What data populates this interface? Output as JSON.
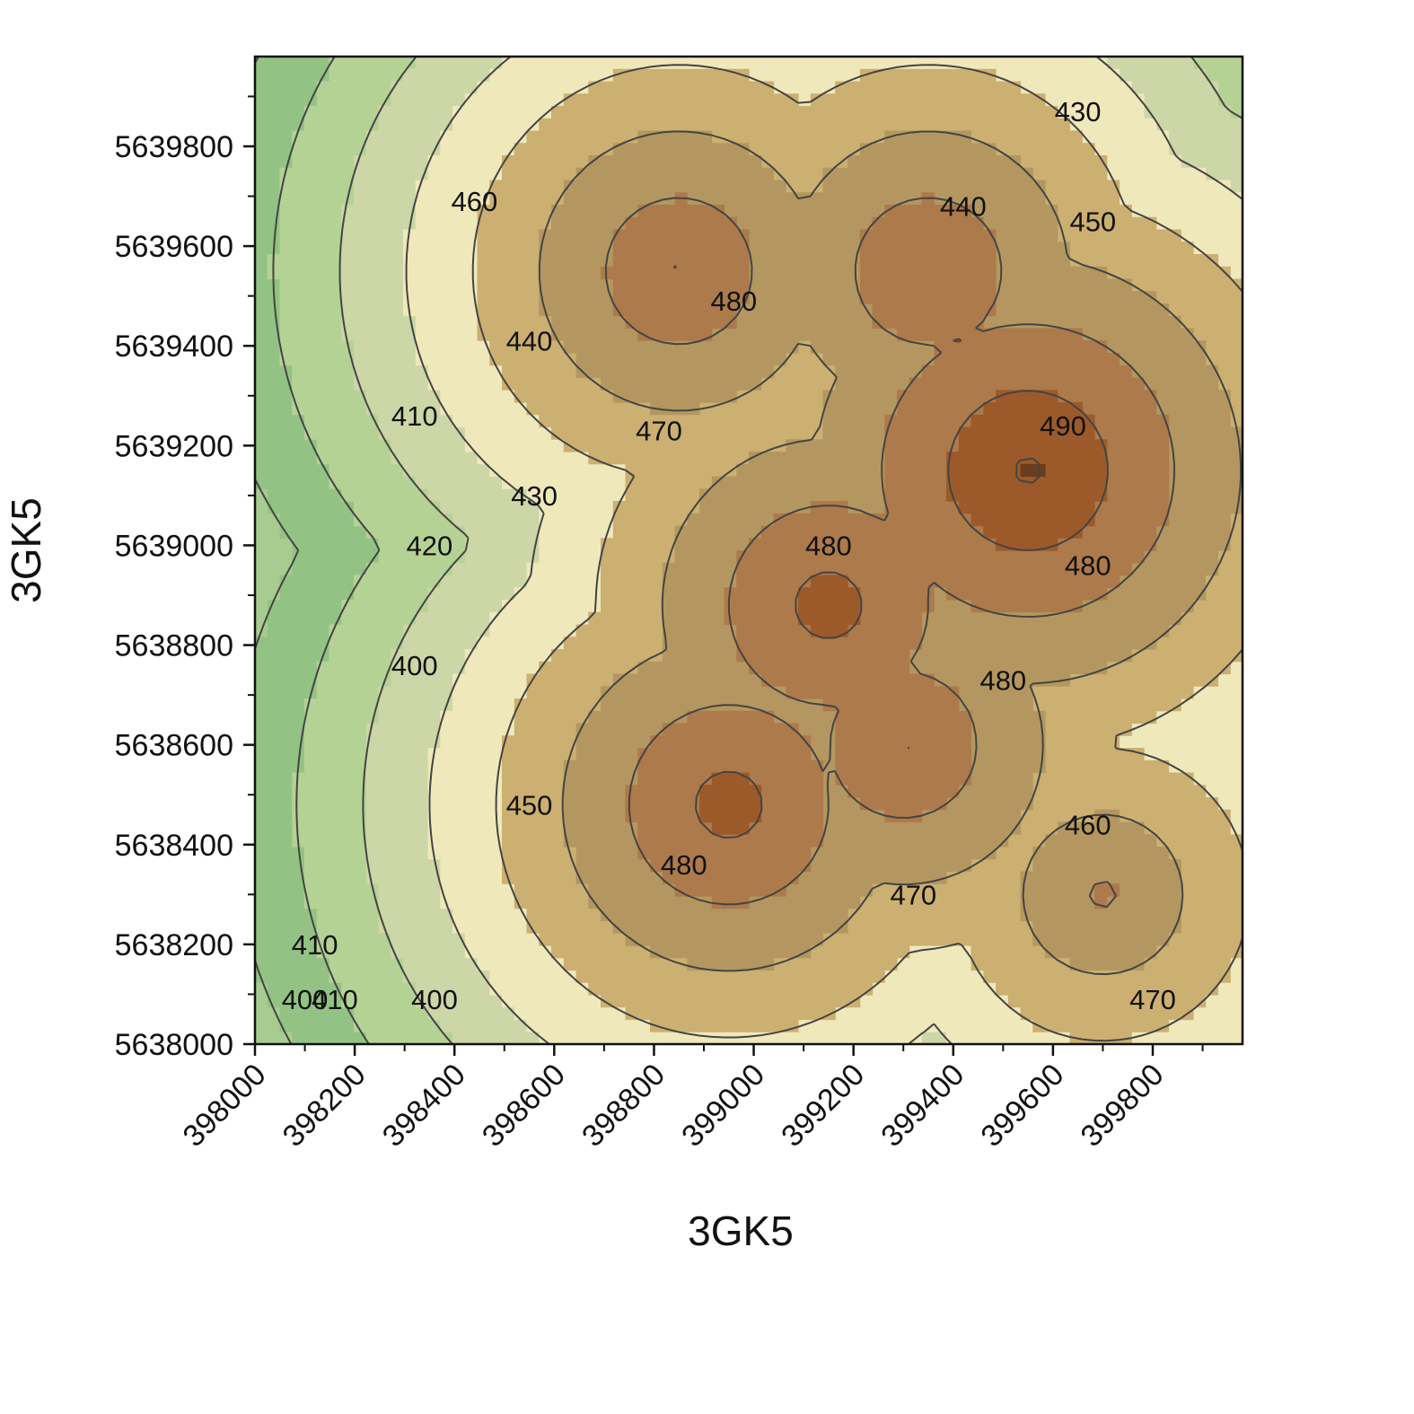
{
  "chart_data": {
    "type": "contour",
    "xlabel": "3GK5",
    "ylabel": "3GK5",
    "xlim": [
      398000,
      399980
    ],
    "ylim": [
      5638000,
      5639980
    ],
    "x_ticks": [
      "398000",
      "398200",
      "398400",
      "398600",
      "398800",
      "399000",
      "399200",
      "399400",
      "399600",
      "399800"
    ],
    "y_ticks": [
      "5638000",
      "5638200",
      "5638400",
      "5638600",
      "5638800",
      "5639000",
      "5639200",
      "5639400",
      "5639600",
      "5639800"
    ],
    "levels": [
      400,
      410,
      420,
      430,
      440,
      450,
      460,
      470,
      480,
      490
    ],
    "level_colors": [
      "#c5ddbd",
      "#a8cc8f",
      "#93c384",
      "#b5d295",
      "#ccd6a6",
      "#efe8bb",
      "#ccb071",
      "#b49760",
      "#ad7a4b",
      "#9c5a2b",
      "#6b3d1f"
    ],
    "peaks": [
      {
        "x": 399550,
        "y": 5639150,
        "z": 492
      },
      {
        "x": 399350,
        "y": 5639550,
        "z": 481
      },
      {
        "x": 398850,
        "y": 5639550,
        "z": 481
      },
      {
        "x": 399150,
        "y": 5638880,
        "z": 485
      },
      {
        "x": 398950,
        "y": 5638480,
        "z": 485
      },
      {
        "x": 399300,
        "y": 5638600,
        "z": 481
      },
      {
        "x": 399700,
        "y": 5638300,
        "z": 472
      }
    ],
    "contour_labels": [
      {
        "text": "430",
        "x": 399650,
        "y": 5639870
      },
      {
        "text": "440",
        "x": 399420,
        "y": 5639680
      },
      {
        "text": "450",
        "x": 399680,
        "y": 5639650
      },
      {
        "text": "460",
        "x": 398440,
        "y": 5639690
      },
      {
        "text": "480",
        "x": 398960,
        "y": 5639490
      },
      {
        "text": "440",
        "x": 398550,
        "y": 5639410
      },
      {
        "text": "410",
        "x": 398320,
        "y": 5639260
      },
      {
        "text": "470",
        "x": 398810,
        "y": 5639230
      },
      {
        "text": "490",
        "x": 399620,
        "y": 5639240
      },
      {
        "text": "430",
        "x": 398560,
        "y": 5639100
      },
      {
        "text": "420",
        "x": 398350,
        "y": 5639000
      },
      {
        "text": "480",
        "x": 399150,
        "y": 5639000
      },
      {
        "text": "480",
        "x": 399670,
        "y": 5638960
      },
      {
        "text": "400",
        "x": 398320,
        "y": 5638760
      },
      {
        "text": "480",
        "x": 399500,
        "y": 5638730
      },
      {
        "text": "450",
        "x": 398550,
        "y": 5638480
      },
      {
        "text": "460",
        "x": 399670,
        "y": 5638440
      },
      {
        "text": "480",
        "x": 398860,
        "y": 5638360
      },
      {
        "text": "470",
        "x": 399320,
        "y": 5638300
      },
      {
        "text": "410",
        "x": 398120,
        "y": 5638200
      },
      {
        "text": "400",
        "x": 398100,
        "y": 5638090
      },
      {
        "text": "410",
        "x": 398160,
        "y": 5638090
      },
      {
        "text": "400",
        "x": 398360,
        "y": 5638090
      },
      {
        "text": "470",
        "x": 399800,
        "y": 5638090
      }
    ]
  }
}
